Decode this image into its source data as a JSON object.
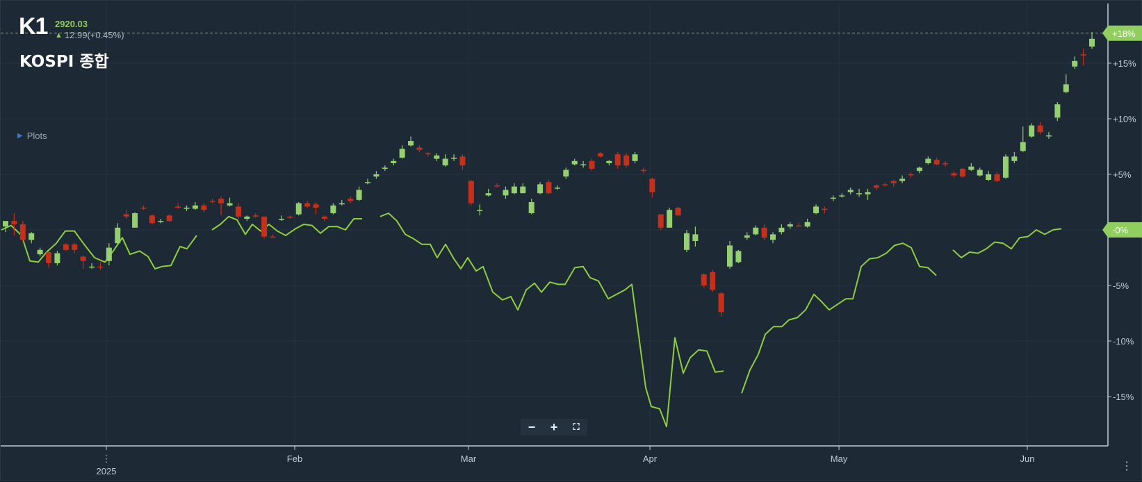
{
  "header": {
    "symbol": "K1",
    "last_price": "2920.03",
    "change": "12.99(+0.45%)",
    "name": "KOSPI 종합",
    "plots_label": "Plots"
  },
  "colors": {
    "background": "#1d2935",
    "up_candle": "#95cf72",
    "down_candle": "#c4301a",
    "line_series": "#8fce3f",
    "badge": "#8fce5f",
    "reference_line": "#8fce5f"
  },
  "controls": {
    "zoom_out_icon": "minus-icon",
    "zoom_in_icon": "plus-icon",
    "fullscreen_icon": "fullscreen-icon",
    "more_icon": "vertical-dots-icon",
    "zoom_out": "−",
    "zoom_in": "+",
    "fullscreen": "⛶"
  },
  "chart_data": {
    "type": "candlestick+line",
    "x_labels": [
      "2025",
      "Feb",
      "Mar",
      "Apr",
      "May",
      "Jun"
    ],
    "y_ticks": [
      "+15%",
      "+10%",
      "+5%",
      "-0%",
      "-5%",
      "-10%",
      "-15%"
    ],
    "y_tick_values": [
      15,
      10,
      5,
      0,
      -5,
      -10,
      -15
    ],
    "ylim": [
      -19.5,
      19.5
    ],
    "current_badge": {
      "label": "+18%",
      "value": 17.7
    },
    "zero_badge": {
      "label": "-0%",
      "value": 0
    },
    "grid": true,
    "candles": [
      [
        0.3,
        0.8,
        0.4,
        -0.2,
        1
      ],
      [
        0.8,
        0.5,
        1.5,
        -0.5,
        0
      ],
      [
        0.5,
        -0.9,
        0.8,
        -1.1,
        0
      ],
      [
        -0.9,
        -0.3,
        -0.2,
        -1.2,
        1
      ],
      [
        -1.8,
        -2.2,
        -1.6,
        -2.4,
        1
      ],
      [
        -2.0,
        -3.0,
        -1.9,
        -3.4,
        0
      ],
      [
        -3.0,
        -2.1,
        -1.9,
        -3.2,
        1
      ],
      [
        -1.8,
        -1.3,
        -1.2,
        -1.9,
        0
      ],
      [
        -1.3,
        -1.8,
        -1.2,
        -2.1,
        0
      ],
      [
        -2.4,
        -2.8,
        -2.3,
        -3.5,
        0
      ],
      [
        -3.3,
        -3.3,
        -3.0,
        -3.5,
        1
      ],
      [
        -3.3,
        -3.3,
        -2.9,
        -3.6,
        0
      ],
      [
        -2.8,
        -1.6,
        -1.2,
        -3.2,
        1
      ],
      [
        -1.2,
        0.2,
        0.6,
        -1.3,
        1
      ],
      [
        1.4,
        1.2,
        1.8,
        1.0,
        0
      ],
      [
        0.2,
        1.5,
        1.6,
        0.2,
        1
      ],
      [
        2.0,
        2.0,
        2.2,
        1.8,
        0
      ],
      [
        1.3,
        0.6,
        1.4,
        0.5,
        0
      ],
      [
        0.7,
        0.8,
        1.0,
        0.6,
        1
      ],
      [
        1.3,
        0.8,
        1.4,
        0.7,
        0
      ],
      [
        2.1,
        2.0,
        2.4,
        1.9,
        0
      ],
      [
        2.0,
        1.9,
        2.2,
        1.7,
        1
      ],
      [
        1.9,
        2.2,
        2.5,
        1.8,
        1
      ],
      [
        2.2,
        1.8,
        2.4,
        1.6,
        0
      ],
      [
        2.6,
        2.6,
        2.8,
        2.4,
        0
      ],
      [
        2.8,
        2.4,
        3.0,
        1.3,
        0
      ],
      [
        2.2,
        2.4,
        2.9,
        2.1,
        1
      ],
      [
        2.1,
        1.2,
        2.4,
        1.0,
        0
      ],
      [
        1.2,
        1.0,
        1.3,
        0.8,
        1
      ],
      [
        1.3,
        1.2,
        1.5,
        1.1,
        0
      ],
      [
        1.2,
        -0.6,
        1.2,
        -0.8,
        0
      ],
      [
        -0.6,
        -0.6,
        -0.4,
        -0.7,
        0
      ],
      [
        0.9,
        1.0,
        1.3,
        0.8,
        1
      ],
      [
        1.1,
        1.2,
        1.3,
        1.0,
        0
      ],
      [
        1.4,
        2.4,
        2.5,
        1.3,
        1
      ],
      [
        2.1,
        2.4,
        2.6,
        2.0,
        0
      ],
      [
        2.3,
        2.0,
        2.5,
        1.4,
        0
      ],
      [
        1.2,
        1.0,
        1.3,
        0.8,
        0
      ],
      [
        1.5,
        2.2,
        2.4,
        1.4,
        1
      ],
      [
        2.3,
        2.4,
        2.7,
        2.2,
        1
      ],
      [
        2.8,
        2.6,
        3.0,
        2.4,
        0
      ],
      [
        2.7,
        3.6,
        3.9,
        2.6,
        1
      ],
      [
        4.3,
        4.3,
        4.6,
        4.1,
        1
      ],
      [
        4.8,
        5.0,
        5.3,
        4.6,
        1
      ],
      [
        5.5,
        5.6,
        5.8,
        5.3,
        1
      ],
      [
        6.2,
        6.0,
        6.4,
        5.8,
        1
      ],
      [
        6.5,
        7.3,
        7.6,
        6.4,
        1
      ],
      [
        7.6,
        8.0,
        8.4,
        7.5,
        1
      ],
      [
        7.4,
        7.2,
        7.6,
        7.0,
        0
      ],
      [
        6.9,
        6.8,
        7.0,
        6.6,
        0
      ],
      [
        6.7,
        6.4,
        6.9,
        6.2,
        1
      ],
      [
        5.8,
        6.4,
        6.8,
        5.7,
        1
      ],
      [
        6.5,
        6.4,
        6.8,
        6.2,
        1
      ],
      [
        6.6,
        5.8,
        6.8,
        5.4,
        0
      ],
      [
        4.4,
        2.4,
        4.5,
        2.2,
        0
      ],
      [
        1.7,
        1.8,
        2.3,
        1.3,
        1
      ],
      [
        3.1,
        3.3,
        3.7,
        3.0,
        1
      ],
      [
        4.0,
        4.0,
        4.2,
        3.8,
        0
      ],
      [
        3.1,
        3.6,
        3.9,
        2.8,
        1
      ],
      [
        3.3,
        3.9,
        4.2,
        3.2,
        1
      ],
      [
        3.3,
        3.9,
        4.2,
        3.3,
        1
      ],
      [
        1.5,
        2.5,
        2.8,
        1.4,
        1
      ],
      [
        3.3,
        4.1,
        4.3,
        3.2,
        1
      ],
      [
        4.3,
        3.3,
        4.5,
        3.2,
        0
      ],
      [
        3.8,
        3.8,
        4.0,
        3.6,
        1
      ],
      [
        4.8,
        5.4,
        5.6,
        4.6,
        1
      ],
      [
        5.9,
        6.2,
        6.4,
        5.8,
        1
      ],
      [
        5.9,
        5.9,
        6.2,
        5.6,
        1
      ],
      [
        6.2,
        5.5,
        6.4,
        5.3,
        0
      ],
      [
        6.9,
        6.6,
        7.0,
        6.5,
        0
      ],
      [
        6.0,
        6.2,
        6.3,
        5.8,
        1
      ],
      [
        6.8,
        5.8,
        7.0,
        5.5,
        0
      ],
      [
        6.7,
        5.8,
        6.9,
        5.6,
        0
      ],
      [
        6.2,
        6.8,
        7.0,
        6.0,
        1
      ],
      [
        5.4,
        5.4,
        5.6,
        5.1,
        0
      ],
      [
        4.6,
        3.4,
        4.7,
        2.9,
        0
      ],
      [
        1.4,
        0.2,
        1.4,
        0.0,
        0
      ],
      [
        0.2,
        1.8,
        2.0,
        0.2,
        1
      ],
      [
        2.0,
        1.3,
        2.1,
        1.2,
        0
      ],
      [
        -0.3,
        -1.8,
        0.0,
        -2.0,
        1
      ],
      [
        -0.4,
        -1.0,
        0.3,
        -1.5,
        1
      ],
      [
        -4.0,
        -5.0,
        -3.9,
        -5.2,
        0
      ],
      [
        -3.8,
        -5.4,
        -3.6,
        -5.6,
        0
      ],
      [
        -5.7,
        -7.4,
        -5.6,
        -7.8,
        0
      ],
      [
        -3.3,
        -1.4,
        -1.0,
        -3.5,
        1
      ],
      [
        -2.9,
        -1.9,
        -1.8,
        -3.0,
        1
      ],
      [
        -0.7,
        -0.5,
        -0.2,
        -0.9,
        1
      ],
      [
        -0.4,
        0.2,
        0.4,
        -0.5,
        1
      ],
      [
        0.2,
        -0.7,
        0.5,
        -0.9,
        0
      ],
      [
        -0.9,
        -0.4,
        -0.2,
        -1.2,
        1
      ],
      [
        -0.2,
        0.2,
        0.5,
        -0.4,
        1
      ],
      [
        0.5,
        0.3,
        0.7,
        0.1,
        1
      ],
      [
        0.4,
        0.4,
        0.7,
        0.3,
        0
      ],
      [
        0.3,
        0.7,
        1.0,
        0.2,
        1
      ],
      [
        1.5,
        2.1,
        2.3,
        1.4,
        1
      ],
      [
        1.9,
        1.9,
        2.1,
        1.5,
        0
      ],
      [
        2.8,
        2.9,
        3.1,
        2.6,
        1
      ],
      [
        3.1,
        3.1,
        3.3,
        2.9,
        1
      ],
      [
        3.4,
        3.6,
        3.8,
        3.2,
        1
      ],
      [
        3.3,
        3.3,
        3.7,
        3.0,
        1
      ],
      [
        3.2,
        3.4,
        3.7,
        2.7,
        1
      ],
      [
        4.0,
        3.8,
        4.1,
        3.6,
        0
      ],
      [
        4.1,
        4.1,
        4.3,
        3.9,
        0
      ],
      [
        4.4,
        4.2,
        4.5,
        3.9,
        0
      ],
      [
        4.4,
        4.6,
        4.9,
        4.2,
        1
      ],
      [
        5.0,
        5.0,
        5.2,
        4.7,
        0
      ],
      [
        5.3,
        5.6,
        5.7,
        5.1,
        1
      ],
      [
        6.0,
        6.4,
        6.6,
        5.9,
        1
      ],
      [
        6.3,
        5.9,
        6.5,
        5.8,
        0
      ],
      [
        6.0,
        5.9,
        6.2,
        5.7,
        0
      ],
      [
        5.1,
        4.9,
        5.3,
        4.7,
        0
      ],
      [
        5.5,
        4.8,
        5.6,
        4.7,
        0
      ],
      [
        5.4,
        5.7,
        6.0,
        5.3,
        1
      ],
      [
        5.4,
        4.9,
        5.6,
        4.8,
        1
      ],
      [
        4.5,
        5.0,
        5.3,
        4.4,
        1
      ],
      [
        5.0,
        4.4,
        5.2,
        4.3,
        0
      ],
      [
        4.7,
        6.6,
        6.8,
        4.6,
        1
      ],
      [
        6.2,
        6.6,
        7.0,
        6.0,
        1
      ],
      [
        7.1,
        7.9,
        9.3,
        7.0,
        1
      ],
      [
        8.4,
        9.4,
        9.6,
        8.3,
        1
      ],
      [
        9.4,
        8.8,
        9.7,
        8.6,
        0
      ],
      [
        8.5,
        8.5,
        8.8,
        8.2,
        1
      ],
      [
        10.1,
        11.3,
        11.5,
        9.8,
        1
      ],
      [
        12.4,
        13.1,
        14.0,
        12.3,
        1
      ],
      [
        14.7,
        15.2,
        15.6,
        14.5,
        1
      ],
      [
        15.7,
        15.8,
        16.3,
        14.8,
        0
      ],
      [
        16.5,
        17.2,
        17.8,
        16.3,
        1
      ]
    ],
    "line_series_segments": [
      [
        [
          1,
          0.0
        ],
        [
          15,
          0.4
        ],
        [
          30,
          -0.5
        ],
        [
          42,
          -2.8
        ],
        [
          54,
          -2.9
        ],
        [
          66,
          -2.0
        ],
        [
          80,
          -1.2
        ],
        [
          93,
          -0.1
        ],
        [
          106,
          -0.1
        ],
        [
          120,
          -1.3
        ],
        [
          135,
          -2.5
        ],
        [
          150,
          -2.9
        ],
        [
          163,
          -1.8
        ],
        [
          175,
          -0.7
        ],
        [
          186,
          -2.2
        ],
        [
          200,
          -1.9
        ],
        [
          212,
          -2.4
        ],
        [
          222,
          -3.5
        ],
        [
          232,
          -3.3
        ],
        [
          245,
          -3.2
        ],
        [
          258,
          -1.5
        ],
        [
          268,
          -1.7
        ],
        [
          282,
          -0.5
        ]
      ],
      [
        [
          304,
          -0.0
        ],
        [
          316,
          0.5
        ],
        [
          328,
          1.2
        ],
        [
          340,
          0.9
        ],
        [
          352,
          -0.4
        ],
        [
          362,
          0.5
        ],
        [
          374,
          -0.1
        ],
        [
          386,
          0.5
        ],
        [
          398,
          -0.1
        ],
        [
          410,
          -0.5
        ],
        [
          424,
          0.1
        ],
        [
          436,
          0.5
        ],
        [
          448,
          0.4
        ],
        [
          460,
          -0.3
        ],
        [
          472,
          0.3
        ],
        [
          484,
          0.3
        ],
        [
          496,
          -0.0
        ],
        [
          508,
          1.0
        ],
        [
          520,
          1.0
        ]
      ],
      [
        [
          546,
          1.2
        ],
        [
          558,
          1.5
        ],
        [
          570,
          0.8
        ],
        [
          582,
          -0.4
        ],
        [
          594,
          -0.8
        ],
        [
          606,
          -1.3
        ],
        [
          618,
          -1.3
        ],
        [
          628,
          -2.5
        ],
        [
          640,
          -1.3
        ],
        [
          652,
          -2.6
        ],
        [
          662,
          -3.5
        ],
        [
          672,
          -2.5
        ],
        [
          684,
          -3.7
        ],
        [
          694,
          -3.3
        ],
        [
          708,
          -5.6
        ],
        [
          722,
          -6.3
        ],
        [
          734,
          -6.0
        ],
        [
          744,
          -7.2
        ],
        [
          756,
          -5.4
        ],
        [
          768,
          -4.8
        ],
        [
          778,
          -5.6
        ],
        [
          790,
          -4.7
        ],
        [
          802,
          -4.9
        ],
        [
          812,
          -4.9
        ],
        [
          826,
          -3.4
        ],
        [
          838,
          -3.3
        ],
        [
          848,
          -4.3
        ],
        [
          860,
          -4.6
        ],
        [
          874,
          -6.2
        ],
        [
          886,
          -5.8
        ],
        [
          898,
          -5.4
        ],
        [
          908,
          -4.9
        ],
        [
          928,
          -14.2
        ],
        [
          936,
          -15.9
        ],
        [
          948,
          -16.1
        ],
        [
          958,
          -17.7
        ],
        [
          970,
          -9.7
        ],
        [
          982,
          -12.9
        ],
        [
          992,
          -11.5
        ],
        [
          1004,
          -10.8
        ],
        [
          1016,
          -10.9
        ],
        [
          1028,
          -12.8
        ],
        [
          1040,
          -12.7
        ]
      ],
      [
        [
          1066,
          -14.7
        ],
        [
          1078,
          -12.6
        ],
        [
          1090,
          -11.2
        ],
        [
          1100,
          -9.4
        ],
        [
          1112,
          -8.7
        ],
        [
          1124,
          -8.7
        ],
        [
          1134,
          -8.1
        ],
        [
          1146,
          -7.9
        ],
        [
          1158,
          -7.2
        ],
        [
          1170,
          -5.8
        ],
        [
          1180,
          -6.4
        ],
        [
          1192,
          -7.2
        ],
        [
          1204,
          -6.7
        ],
        [
          1216,
          -6.2
        ],
        [
          1226,
          -6.2
        ],
        [
          1238,
          -3.3
        ],
        [
          1250,
          -2.6
        ],
        [
          1262,
          -2.5
        ],
        [
          1274,
          -2.1
        ],
        [
          1286,
          -1.4
        ],
        [
          1298,
          -1.2
        ],
        [
          1310,
          -1.6
        ],
        [
          1322,
          -3.3
        ],
        [
          1334,
          -3.4
        ],
        [
          1346,
          -4.1
        ]
      ],
      [
        [
          1370,
          -1.8
        ],
        [
          1382,
          -2.5
        ],
        [
          1394,
          -2.0
        ],
        [
          1406,
          -2.1
        ],
        [
          1418,
          -1.7
        ],
        [
          1430,
          -1.1
        ],
        [
          1442,
          -1.2
        ],
        [
          1454,
          -1.7
        ],
        [
          1466,
          -0.7
        ],
        [
          1478,
          -0.6
        ],
        [
          1490,
          -0.0
        ],
        [
          1502,
          -0.4
        ],
        [
          1514,
          -0.0
        ],
        [
          1526,
          0.1
        ]
      ]
    ]
  }
}
